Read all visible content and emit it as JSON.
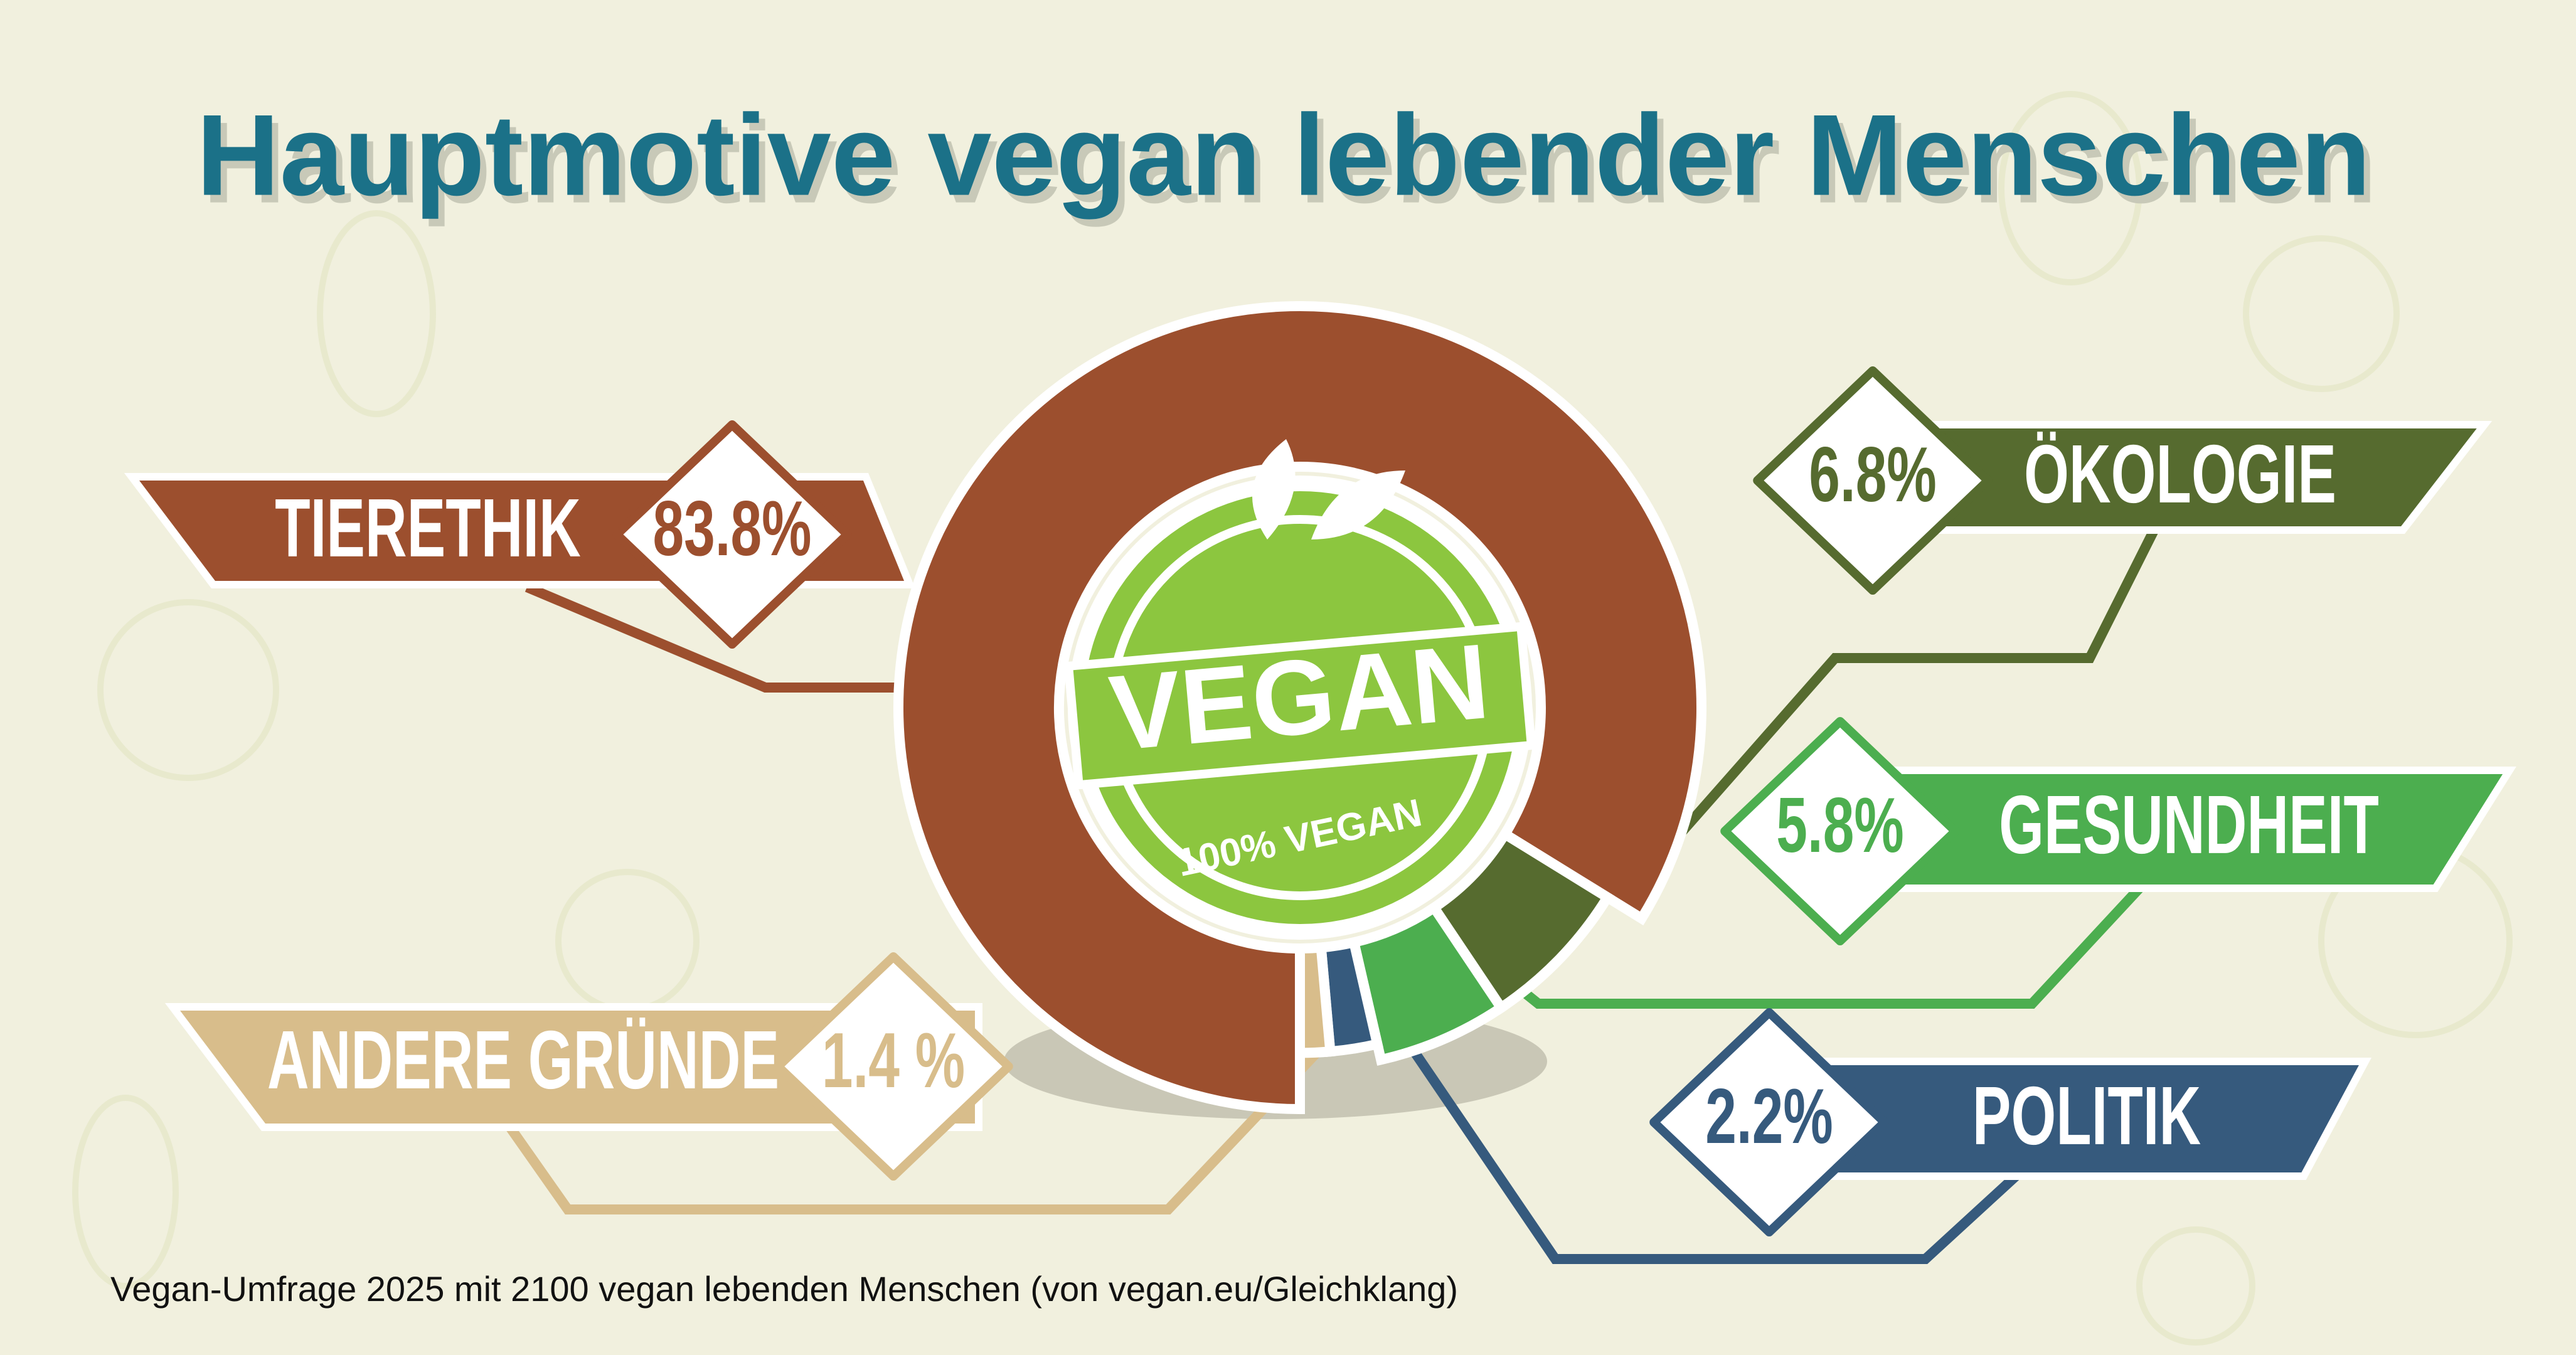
{
  "chart_data": {
    "type": "pie",
    "title": "Hauptmotive vegan lebender Menschen",
    "categories": [
      "TIERETHIK",
      "ÖKOLOGIE",
      "GESUNDHEIT",
      "POLITIK",
      "ANDERE GRÜNDE"
    ],
    "values": [
      83.8,
      6.8,
      5.8,
      2.2,
      1.4
    ],
    "value_labels": [
      "83.8%",
      "6.8%",
      "5.8%",
      "2.2%",
      "1.4 %"
    ],
    "colors": [
      "#9c4f2e",
      "#566b2f",
      "#4cae4f",
      "#365a7d",
      "#d8bd8b"
    ],
    "source": "Vegan-Umfrage 2025 mit 2100 vegan lebenden Menschen (von vegan.eu/Gleichklang)"
  },
  "badge": {
    "text": "VEGAN",
    "subtext": "100% VEGAN"
  }
}
